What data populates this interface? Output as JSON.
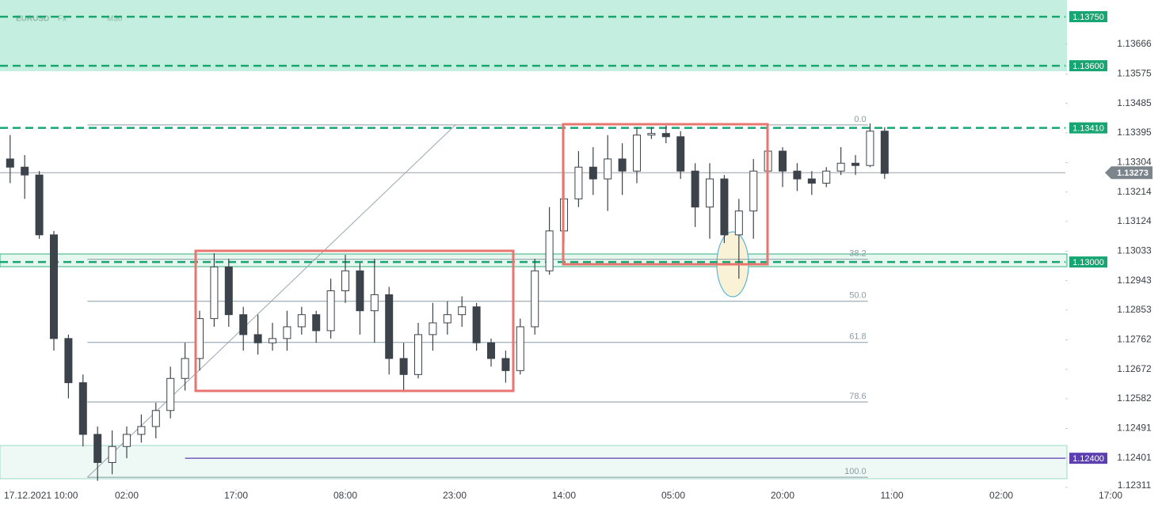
{
  "chart_data": {
    "type": "candlestick",
    "symbol": "EURUSD",
    "market": "Fx",
    "timeframe": "M30",
    "x": [
      0,
      2,
      4,
      6,
      8,
      10,
      12,
      14,
      16,
      18,
      20,
      22,
      24,
      26,
      28,
      30,
      32,
      34,
      36,
      38,
      40,
      42,
      44,
      46,
      48,
      50,
      52,
      54,
      56,
      58,
      60,
      62,
      64,
      66,
      68,
      70,
      72,
      74,
      76,
      78,
      80,
      82,
      84,
      86,
      88,
      90,
      92,
      94,
      96,
      98,
      100,
      102,
      104,
      106,
      108,
      110,
      112,
      114,
      116,
      118,
      120
    ],
    "open": [
      1.13315,
      1.1329,
      1.13266,
      1.13083,
      1.12766,
      1.12631,
      1.12473,
      1.12387,
      1.12436,
      1.12473,
      1.12497,
      1.12546,
      1.12644,
      1.12705,
      1.12827,
      1.12985,
      1.12839,
      1.12778,
      1.12753,
      1.12766,
      1.12802,
      1.12839,
      1.1279,
      1.12912,
      1.12973,
      1.12851,
      1.129,
      1.12705,
      1.12656,
      1.12778,
      1.12814,
      1.12839,
      1.12863,
      1.12753,
      1.12705,
      1.12668,
      1.12802,
      1.12973,
      1.13095,
      1.13193,
      1.1329,
      1.13254,
      1.13315,
      1.13278,
      1.13388,
      1.13393,
      1.13383,
      1.13278,
      1.13168,
      1.13254,
      1.13083,
      1.13156,
      1.13278,
      1.13339,
      1.13278,
      1.13254,
      1.13241,
      1.13278,
      1.13302,
      1.13295,
      1.134
    ],
    "high": [
      1.13388,
      1.13327,
      1.13278,
      1.13095,
      1.12778,
      1.12656,
      1.12497,
      1.12485,
      1.12497,
      1.12534,
      1.1257,
      1.1268,
      1.12753,
      1.12851,
      1.13027,
      1.1301,
      1.12863,
      1.12839,
      1.12814,
      1.12851,
      1.12863,
      1.12851,
      1.12949,
      1.13022,
      1.12997,
      1.1301,
      1.12924,
      1.12753,
      1.12814,
      1.12875,
      1.1288,
      1.12895,
      1.12875,
      1.12766,
      1.12729,
      1.12827,
      1.1301,
      1.13168,
      1.13278,
      1.13339,
      1.13351,
      1.13388,
      1.13363,
      1.13412,
      1.13412,
      1.13417,
      1.134,
      1.13302,
      1.13302,
      1.13266,
      1.13193,
      1.13315,
      1.13376,
      1.13351,
      1.13302,
      1.13278,
      1.1329,
      1.13351,
      1.13327,
      1.13424,
      1.13412
    ],
    "low": [
      1.13241,
      1.13193,
      1.13071,
      1.12729,
      1.12583,
      1.12436,
      1.12331,
      1.12351,
      1.124,
      1.12448,
      1.12461,
      1.12522,
      1.12607,
      1.12668,
      1.12802,
      1.12802,
      1.12729,
      1.12717,
      1.12729,
      1.12729,
      1.12778,
      1.12753,
      1.12766,
      1.12875,
      1.12778,
      1.12753,
      1.12656,
      1.12602,
      1.12644,
      1.12729,
      1.12778,
      1.12802,
      1.12729,
      1.1268,
      1.12631,
      1.12656,
      1.12778,
      1.12961,
      1.13058,
      1.13168,
      1.13205,
      1.13156,
      1.13205,
      1.13241,
      1.13376,
      1.13363,
      1.13254,
      1.13107,
      1.13071,
      1.13058,
      1.12949,
      1.13071,
      1.13254,
      1.13229,
      1.13217,
      1.13205,
      1.13229,
      1.13266,
      1.13266,
      1.1329,
      1.13254
    ],
    "close": [
      1.1329,
      1.13266,
      1.13083,
      1.12766,
      1.12631,
      1.12473,
      1.12387,
      1.12436,
      1.12473,
      1.12497,
      1.12546,
      1.12644,
      1.12705,
      1.12827,
      1.12985,
      1.12839,
      1.12778,
      1.12753,
      1.12766,
      1.12802,
      1.12839,
      1.1279,
      1.12912,
      1.12973,
      1.12851,
      1.129,
      1.12705,
      1.12656,
      1.12778,
      1.12814,
      1.12839,
      1.12863,
      1.12753,
      1.12705,
      1.12668,
      1.12802,
      1.12973,
      1.13095,
      1.13193,
      1.1329,
      1.13254,
      1.13315,
      1.13278,
      1.13388,
      1.13393,
      1.13383,
      1.13278,
      1.13168,
      1.13254,
      1.13083,
      1.13156,
      1.13278,
      1.13339,
      1.13278,
      1.13254,
      1.13241,
      1.13278,
      1.13302,
      1.13295,
      1.134,
      1.13271
    ],
    "up_color": "#ffffff",
    "down_color": "#3d434b",
    "wick_color": "#3d434b",
    "xlim": [
      -1.39,
      144.8
    ],
    "xticks": [
      {
        "value": 0,
        "label": "17.12.2021 10:00"
      },
      {
        "value": 16,
        "label": "02:00"
      },
      {
        "value": 31,
        "label": "17:00"
      },
      {
        "value": 46,
        "label": "08:00"
      },
      {
        "value": 61,
        "label": "23:00"
      },
      {
        "value": 76,
        "label": "14:00"
      },
      {
        "value": 91,
        "label": "05:00"
      },
      {
        "value": 106,
        "label": "20:00"
      },
      {
        "value": 121,
        "label": "11:00"
      },
      {
        "value": 136,
        "label": "02:00"
      },
      {
        "value": 151,
        "label": "17:00"
      }
    ],
    "ylim": [
      1.12306,
      1.13801
    ],
    "yticks": [
      1.12311,
      1.12401,
      1.12491,
      1.12582,
      1.12672,
      1.12762,
      1.12853,
      1.12943,
      1.13033,
      1.13124,
      1.13214,
      1.13304,
      1.13395,
      1.13485,
      1.13575,
      1.13666
    ],
    "levels": [
      {
        "value": 1.1375,
        "label": "1.13750",
        "color": "#17a673",
        "dashed": true
      },
      {
        "value": 1.136,
        "label": "1.13600",
        "color": "#17a673",
        "dashed": true
      },
      {
        "value": 1.1341,
        "label": "1.13410",
        "color": "#17a673",
        "dashed": true
      },
      {
        "value": 1.13,
        "label": "1.13000",
        "color": "#17a673",
        "dashed": true
      },
      {
        "value": 1.124,
        "label": "1.12400",
        "color": "#5b3fb0",
        "dashed": false,
        "start": 24
      }
    ],
    "last_price": 1.13273,
    "fibonacci": {
      "x": [
        10.6,
        61.1
      ],
      "extend_to": 117.7,
      "levels": [
        {
          "label": "0.0",
          "price": 1.13419
        },
        {
          "label": "38.2",
          "price": 1.13008
        },
        {
          "label": "50.0",
          "price": 1.1288
        },
        {
          "label": "61.8",
          "price": 1.12754
        },
        {
          "label": "78.6",
          "price": 1.12572
        },
        {
          "label": "100.0",
          "price": 1.12342
        }
      ]
    }
  }
}
